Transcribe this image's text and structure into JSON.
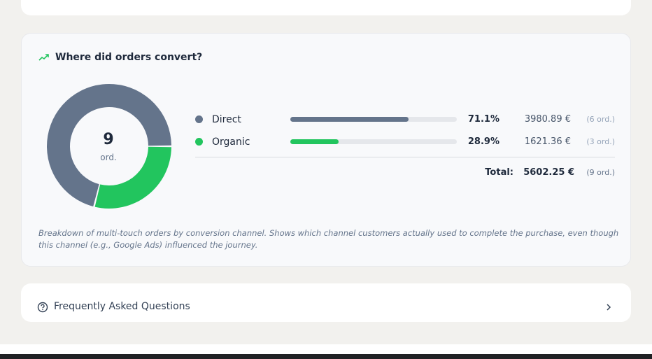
{
  "card_title": "Where did orders convert?",
  "chart_data": {
    "type": "donut",
    "center_value": 9,
    "center_unit": "ord.",
    "categories": [
      "Direct",
      "Organic"
    ],
    "values": [
      71.1,
      28.9
    ],
    "value_labels": [
      "71.1%",
      "28.9%"
    ],
    "colors": [
      "#64748b",
      "#22c55e"
    ],
    "amounts": [
      "3980.89 €",
      "1621.36 €"
    ],
    "orders": [
      "(6 ord.)",
      "(3 ord.)"
    ],
    "total_label": "Total:",
    "total_amount": "5602.25 €",
    "total_orders": "(9 ord.)"
  },
  "description": "Breakdown of multi-touch orders by conversion channel. Shows which channel customers actually used to complete the purchase, even though this channel (e.g., Google Ads) influenced the journey.",
  "faq": {
    "title": "Frequently Asked Questions"
  }
}
